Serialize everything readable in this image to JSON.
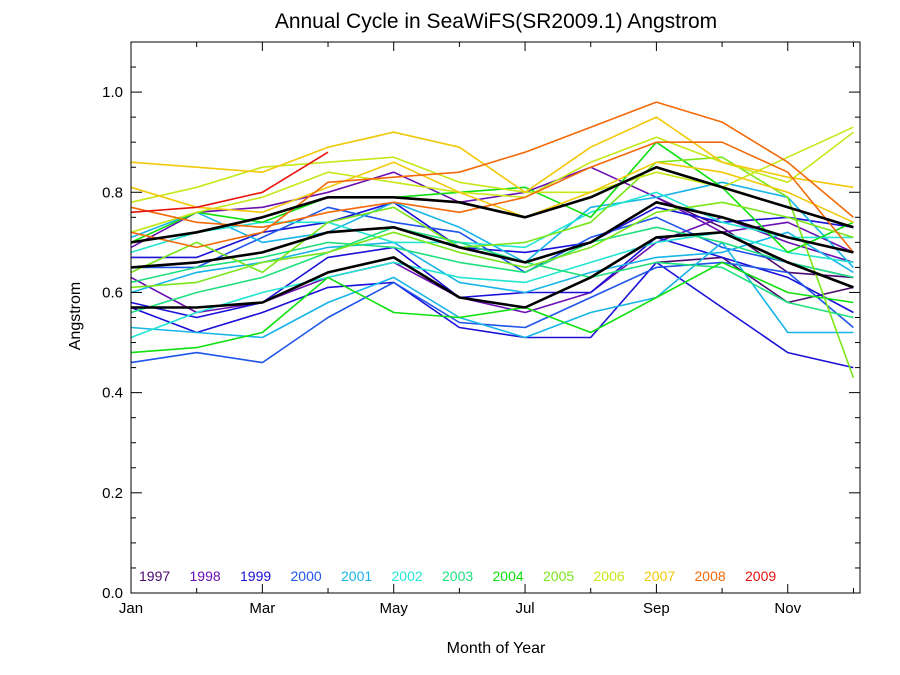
{
  "chart_data": {
    "type": "line",
    "title": "Annual Cycle in SeaWiFS(SR2009.1) Angstrom",
    "xlabel": "Month of Year",
    "ylabel": "Angstrom",
    "xlim": [
      1,
      12.1
    ],
    "ylim": [
      0.0,
      1.1
    ],
    "x_ticks": [
      {
        "value": 1,
        "label": "Jan"
      },
      {
        "value": 3,
        "label": "Mar"
      },
      {
        "value": 5,
        "label": "May"
      },
      {
        "value": 7,
        "label": "Jul"
      },
      {
        "value": 9,
        "label": "Sep"
      },
      {
        "value": 11,
        "label": "Nov"
      }
    ],
    "y_ticks": [
      {
        "value": 0.0,
        "label": "0.0"
      },
      {
        "value": 0.2,
        "label": "0.2"
      },
      {
        "value": 0.4,
        "label": "0.4"
      },
      {
        "value": 0.6,
        "label": "0.6"
      },
      {
        "value": 0.8,
        "label": "0.8"
      },
      {
        "value": 1.0,
        "label": "1.0"
      }
    ],
    "grid": false,
    "legend_position": "bottom",
    "x": [
      1,
      2,
      3,
      4,
      5,
      6,
      7,
      8,
      9,
      10,
      11,
      12
    ],
    "series": [
      {
        "name": "1997",
        "color": "#4a0a6e",
        "lines": [
          [
            null,
            null,
            null,
            null,
            null,
            null,
            null,
            null,
            0.79,
            0.73,
            0.64,
            0.63
          ],
          [
            null,
            null,
            null,
            null,
            null,
            null,
            null,
            null,
            0.66,
            0.67,
            0.58,
            0.61
          ]
        ]
      },
      {
        "name": "1998",
        "color": "#6a0fb2",
        "lines": [
          [
            0.69,
            0.76,
            0.77,
            0.8,
            0.84,
            0.78,
            0.8,
            0.85,
            0.79,
            0.72,
            0.74,
            0.68
          ],
          [
            0.63,
            0.56,
            0.58,
            0.63,
            0.66,
            0.59,
            0.56,
            0.6,
            0.7,
            0.75,
            0.7,
            0.66
          ]
        ]
      },
      {
        "name": "1999",
        "color": "#1a10d8",
        "lines": [
          [
            0.67,
            0.67,
            0.72,
            0.74,
            0.78,
            0.69,
            0.68,
            0.7,
            0.77,
            0.74,
            0.75,
            0.73
          ],
          [
            0.57,
            0.52,
            0.56,
            0.61,
            0.62,
            0.53,
            0.51,
            0.51,
            0.66,
            0.57,
            0.48,
            0.45
          ],
          [
            0.58,
            0.55,
            0.58,
            0.67,
            0.69,
            0.59,
            0.6,
            0.6,
            0.71,
            0.67,
            0.63,
            0.56
          ]
        ]
      },
      {
        "name": "2000",
        "color": "#1f55e8",
        "lines": [
          [
            0.46,
            0.48,
            0.46,
            0.55,
            0.62,
            0.54,
            0.53,
            0.59,
            0.65,
            0.66,
            0.64,
            0.53
          ],
          [
            0.65,
            0.65,
            0.71,
            0.77,
            0.74,
            0.72,
            0.64,
            0.71,
            0.75,
            0.69,
            0.66,
            0.63
          ]
        ]
      },
      {
        "name": "2001",
        "color": "#19b4e8",
        "lines": [
          [
            0.6,
            0.64,
            0.66,
            0.69,
            0.7,
            0.62,
            0.6,
            0.64,
            0.67,
            0.68,
            0.72,
            0.64
          ],
          [
            0.53,
            0.52,
            0.51,
            0.58,
            0.63,
            0.55,
            0.51,
            0.56,
            0.59,
            0.7,
            0.52,
            0.52
          ],
          [
            0.71,
            0.76,
            0.7,
            0.72,
            0.78,
            0.73,
            0.66,
            0.77,
            0.79,
            0.82,
            0.79,
            0.65
          ]
        ]
      },
      {
        "name": "2002",
        "color": "#22e6d2",
        "lines": [
          [
            0.68,
            0.72,
            0.74,
            0.74,
            0.7,
            0.7,
            0.69,
            0.76,
            0.8,
            0.74,
            0.71,
            0.71
          ],
          [
            0.51,
            0.56,
            0.6,
            0.63,
            0.66,
            0.63,
            0.62,
            0.66,
            0.7,
            0.72,
            0.68,
            0.66
          ]
        ]
      },
      {
        "name": "2003",
        "color": "#1ee07c",
        "lines": [
          [
            0.62,
            0.65,
            0.67,
            0.7,
            0.69,
            0.66,
            0.64,
            0.7,
            0.73,
            0.7,
            0.66,
            0.63
          ],
          [
            0.56,
            0.6,
            0.63,
            0.68,
            0.73,
            0.7,
            0.66,
            0.63,
            0.66,
            0.65,
            0.58,
            0.55
          ]
        ]
      },
      {
        "name": "2004",
        "color": "#0ee10e",
        "lines": [
          [
            0.48,
            0.49,
            0.52,
            0.63,
            0.56,
            0.55,
            0.57,
            0.52,
            0.59,
            0.66,
            0.6,
            0.58
          ],
          [
            0.7,
            0.76,
            0.74,
            0.79,
            0.79,
            0.8,
            0.81,
            0.75,
            0.9,
            0.81,
            0.68,
            0.74
          ]
        ]
      },
      {
        "name": "2005",
        "color": "#7ae61a",
        "lines": [
          [
            0.64,
            0.7,
            0.64,
            0.74,
            0.77,
            0.69,
            0.7,
            0.74,
            0.86,
            0.87,
            0.79,
            0.43
          ],
          [
            0.61,
            0.62,
            0.66,
            0.68,
            0.72,
            0.68,
            0.65,
            0.69,
            0.76,
            0.78,
            0.75,
            0.71
          ]
        ]
      },
      {
        "name": "2006",
        "color": "#c6e81a",
        "lines": [
          [
            0.78,
            0.81,
            0.85,
            0.86,
            0.87,
            0.82,
            0.8,
            0.8,
            0.84,
            0.81,
            0.87,
            0.93
          ],
          [
            0.72,
            0.76,
            0.79,
            0.84,
            0.82,
            0.8,
            0.79,
            0.86,
            0.91,
            0.86,
            0.82,
            0.92
          ]
        ]
      },
      {
        "name": "2007",
        "color": "#f2c80a",
        "lines": [
          [
            0.86,
            0.85,
            0.84,
            0.89,
            0.92,
            0.89,
            0.8,
            0.89,
            0.95,
            0.86,
            0.83,
            0.81
          ],
          [
            0.81,
            0.77,
            0.76,
            0.81,
            0.86,
            0.8,
            0.75,
            0.8,
            0.86,
            0.84,
            0.8,
            0.74
          ]
        ]
      },
      {
        "name": "2008",
        "color": "#f26a0a",
        "lines": [
          [
            0.72,
            0.69,
            0.72,
            0.82,
            0.83,
            0.84,
            0.88,
            0.93,
            0.98,
            0.94,
            0.86,
            0.75
          ],
          [
            0.77,
            0.74,
            0.73,
            0.76,
            0.78,
            0.76,
            0.79,
            0.85,
            0.9,
            0.9,
            0.84,
            0.68
          ]
        ]
      },
      {
        "name": "2009",
        "color": "#e8130f",
        "lines": [
          [
            0.76,
            0.77,
            0.8,
            0.88
          ]
        ]
      }
    ],
    "mean_lines": {
      "color": "#000000",
      "lines": [
        [
          0.7,
          0.72,
          0.75,
          0.79,
          0.79,
          0.78,
          0.75,
          0.79,
          0.85,
          0.81,
          0.77,
          0.73
        ],
        [
          0.65,
          0.66,
          0.68,
          0.72,
          0.73,
          0.69,
          0.66,
          0.7,
          0.78,
          0.75,
          0.71,
          0.68
        ],
        [
          0.57,
          0.57,
          0.58,
          0.64,
          0.67,
          0.59,
          0.57,
          0.63,
          0.71,
          0.72,
          0.66,
          0.61
        ]
      ]
    }
  }
}
